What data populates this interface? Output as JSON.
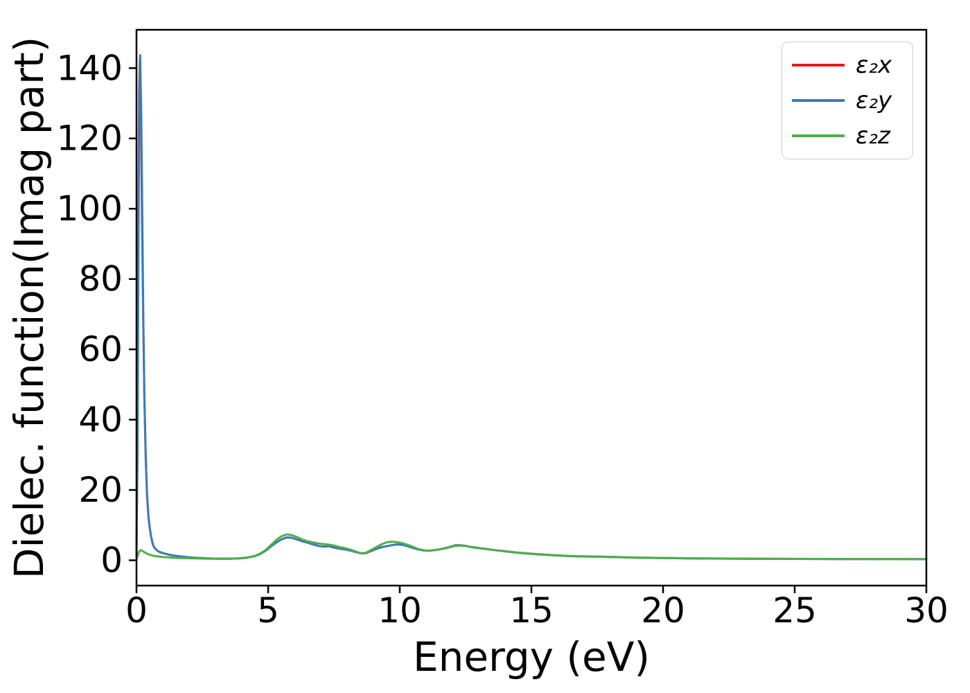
{
  "chart_data": {
    "type": "line",
    "title": "",
    "xlabel": "Energy (eV)",
    "ylabel": "Dielec. function(Imag part)",
    "xlim": [
      0,
      30
    ],
    "ylim": [
      -7.2,
      150.9
    ],
    "xticks": [
      0,
      5,
      10,
      15,
      20,
      25,
      30
    ],
    "yticks": [
      0,
      20,
      40,
      60,
      80,
      100,
      120,
      140
    ],
    "grid": false,
    "legend_position": "upper right",
    "series": [
      {
        "name": "ε₂x",
        "color": "#e41a1c",
        "points": [
          [
            0,
            1.0
          ],
          [
            0.03,
            30
          ],
          [
            0.07,
            95
          ],
          [
            0.1,
            133
          ],
          [
            0.13,
            142.5
          ],
          [
            0.17,
            126
          ],
          [
            0.21,
            96
          ],
          [
            0.26,
            66
          ],
          [
            0.3,
            46
          ],
          [
            0.35,
            29
          ],
          [
            0.4,
            18.5
          ],
          [
            0.45,
            12.7
          ],
          [
            0.5,
            9.3
          ],
          [
            0.55,
            6.9
          ],
          [
            0.6,
            5.1
          ],
          [
            0.65,
            3.95
          ],
          [
            0.7,
            3.38
          ],
          [
            0.8,
            2.68
          ],
          [
            0.9,
            2.28
          ],
          [
            1.0,
            2.05
          ],
          [
            1.2,
            1.65
          ],
          [
            1.4,
            1.35
          ],
          [
            1.6,
            1.15
          ],
          [
            1.8,
            0.98
          ],
          [
            2.0,
            0.85
          ],
          [
            2.2,
            0.72
          ],
          [
            2.5,
            0.6
          ],
          [
            2.8,
            0.5
          ],
          [
            3.0,
            0.46
          ],
          [
            3.3,
            0.44
          ],
          [
            3.6,
            0.46
          ],
          [
            3.9,
            0.55
          ],
          [
            4.2,
            0.75
          ],
          [
            4.5,
            1.2
          ],
          [
            4.7,
            1.8
          ],
          [
            4.9,
            2.7
          ],
          [
            5.1,
            3.9
          ],
          [
            5.3,
            5.0
          ],
          [
            5.5,
            5.9
          ],
          [
            5.7,
            6.5
          ],
          [
            5.9,
            6.4
          ],
          [
            6.1,
            5.9
          ],
          [
            6.3,
            5.4
          ],
          [
            6.5,
            5.0
          ],
          [
            6.7,
            4.5
          ],
          [
            6.9,
            4.1
          ],
          [
            7.1,
            3.9
          ],
          [
            7.3,
            4.0
          ],
          [
            7.5,
            3.6
          ],
          [
            7.7,
            3.3
          ],
          [
            7.9,
            3.1
          ],
          [
            8.1,
            2.8
          ],
          [
            8.3,
            2.4
          ],
          [
            8.5,
            2.0
          ],
          [
            8.7,
            2.0
          ],
          [
            8.9,
            2.6
          ],
          [
            9.1,
            3.2
          ],
          [
            9.3,
            3.7
          ],
          [
            9.5,
            4.0
          ],
          [
            9.7,
            4.3
          ],
          [
            9.9,
            4.5
          ],
          [
            10.1,
            4.4
          ],
          [
            10.3,
            4.0
          ],
          [
            10.5,
            3.5
          ],
          [
            10.7,
            3.1
          ],
          [
            10.9,
            2.8
          ],
          [
            11.1,
            2.7
          ],
          [
            11.3,
            2.9
          ],
          [
            11.5,
            3.1
          ],
          [
            11.7,
            3.4
          ],
          [
            11.9,
            3.8
          ],
          [
            12.1,
            4.25
          ],
          [
            12.3,
            4.3
          ],
          [
            12.5,
            4.1
          ],
          [
            12.7,
            3.8
          ],
          [
            13.0,
            3.5
          ],
          [
            13.3,
            3.2
          ],
          [
            13.6,
            2.9
          ],
          [
            14.0,
            2.55
          ],
          [
            14.4,
            2.2
          ],
          [
            14.8,
            1.95
          ],
          [
            15.2,
            1.72
          ],
          [
            15.6,
            1.52
          ],
          [
            16.0,
            1.35
          ],
          [
            16.5,
            1.18
          ],
          [
            17.0,
            1.08
          ],
          [
            17.5,
            1.02
          ],
          [
            18.0,
            0.94
          ],
          [
            18.5,
            0.84
          ],
          [
            19.0,
            0.75
          ],
          [
            19.5,
            0.68
          ],
          [
            20.0,
            0.63
          ],
          [
            21.0,
            0.55
          ],
          [
            22.0,
            0.49
          ],
          [
            23.0,
            0.45
          ],
          [
            24.0,
            0.41
          ],
          [
            25.0,
            0.39
          ],
          [
            26.0,
            0.37
          ],
          [
            27.0,
            0.35
          ],
          [
            28.0,
            0.34
          ],
          [
            29.0,
            0.33
          ],
          [
            30.0,
            0.32
          ]
        ]
      },
      {
        "name": "ε₂y",
        "color": "#377eb8",
        "points": [
          [
            0,
            1.0
          ],
          [
            0.04,
            30
          ],
          [
            0.08,
            95
          ],
          [
            0.11,
            133
          ],
          [
            0.14,
            143.7
          ],
          [
            0.18,
            128
          ],
          [
            0.22,
            98
          ],
          [
            0.26,
            68
          ],
          [
            0.3,
            47
          ],
          [
            0.35,
            30
          ],
          [
            0.4,
            19
          ],
          [
            0.45,
            13
          ],
          [
            0.5,
            9.5
          ],
          [
            0.55,
            7.0
          ],
          [
            0.6,
            5.2
          ],
          [
            0.65,
            4.0
          ],
          [
            0.7,
            3.4
          ],
          [
            0.8,
            2.7
          ],
          [
            0.9,
            2.3
          ],
          [
            1.0,
            2.05
          ],
          [
            1.2,
            1.65
          ],
          [
            1.4,
            1.35
          ],
          [
            1.6,
            1.15
          ],
          [
            1.8,
            0.98
          ],
          [
            2.0,
            0.85
          ],
          [
            2.2,
            0.72
          ],
          [
            2.5,
            0.6
          ],
          [
            2.8,
            0.5
          ],
          [
            3.0,
            0.46
          ],
          [
            3.3,
            0.44
          ],
          [
            3.6,
            0.46
          ],
          [
            3.9,
            0.55
          ],
          [
            4.2,
            0.75
          ],
          [
            4.5,
            1.2
          ],
          [
            4.7,
            1.8
          ],
          [
            4.9,
            2.7
          ],
          [
            5.1,
            3.9
          ],
          [
            5.3,
            5.0
          ],
          [
            5.5,
            5.9
          ],
          [
            5.7,
            6.5
          ],
          [
            5.9,
            6.4
          ],
          [
            6.1,
            5.9
          ],
          [
            6.3,
            5.4
          ],
          [
            6.5,
            5.0
          ],
          [
            6.7,
            4.5
          ],
          [
            6.9,
            4.1
          ],
          [
            7.1,
            3.9
          ],
          [
            7.3,
            4.0
          ],
          [
            7.5,
            3.6
          ],
          [
            7.7,
            3.3
          ],
          [
            7.9,
            3.1
          ],
          [
            8.1,
            2.8
          ],
          [
            8.3,
            2.4
          ],
          [
            8.5,
            2.0
          ],
          [
            8.7,
            2.0
          ],
          [
            8.9,
            2.6
          ],
          [
            9.1,
            3.2
          ],
          [
            9.3,
            3.7
          ],
          [
            9.5,
            4.0
          ],
          [
            9.7,
            4.3
          ],
          [
            9.9,
            4.5
          ],
          [
            10.1,
            4.4
          ],
          [
            10.3,
            4.0
          ],
          [
            10.5,
            3.5
          ],
          [
            10.7,
            3.1
          ],
          [
            10.9,
            2.8
          ],
          [
            11.1,
            2.7
          ],
          [
            11.3,
            2.9
          ],
          [
            11.5,
            3.1
          ],
          [
            11.7,
            3.4
          ],
          [
            11.9,
            3.8
          ],
          [
            12.1,
            4.25
          ],
          [
            12.3,
            4.3
          ],
          [
            12.5,
            4.1
          ],
          [
            12.7,
            3.8
          ],
          [
            13.0,
            3.5
          ],
          [
            13.3,
            3.2
          ],
          [
            13.6,
            2.9
          ],
          [
            14.0,
            2.55
          ],
          [
            14.4,
            2.2
          ],
          [
            14.8,
            1.95
          ],
          [
            15.2,
            1.72
          ],
          [
            15.6,
            1.52
          ],
          [
            16.0,
            1.35
          ],
          [
            16.5,
            1.18
          ],
          [
            17.0,
            1.08
          ],
          [
            17.5,
            1.02
          ],
          [
            18.0,
            0.94
          ],
          [
            18.5,
            0.84
          ],
          [
            19.0,
            0.75
          ],
          [
            19.5,
            0.68
          ],
          [
            20.0,
            0.63
          ],
          [
            21.0,
            0.55
          ],
          [
            22.0,
            0.49
          ],
          [
            23.0,
            0.45
          ],
          [
            24.0,
            0.41
          ],
          [
            25.0,
            0.39
          ],
          [
            26.0,
            0.37
          ],
          [
            27.0,
            0.35
          ],
          [
            28.0,
            0.34
          ],
          [
            29.0,
            0.33
          ],
          [
            30.0,
            0.32
          ]
        ]
      },
      {
        "name": "ε₂z",
        "color": "#4daf4a",
        "points": [
          [
            0,
            0.2
          ],
          [
            0.05,
            1.4
          ],
          [
            0.1,
            2.5
          ],
          [
            0.15,
            2.9
          ],
          [
            0.2,
            2.75
          ],
          [
            0.3,
            2.3
          ],
          [
            0.4,
            1.9
          ],
          [
            0.5,
            1.55
          ],
          [
            0.6,
            1.35
          ],
          [
            0.7,
            1.2
          ],
          [
            0.8,
            1.1
          ],
          [
            1.0,
            0.95
          ],
          [
            1.2,
            0.82
          ],
          [
            1.4,
            0.72
          ],
          [
            1.6,
            0.65
          ],
          [
            1.8,
            0.6
          ],
          [
            2.0,
            0.56
          ],
          [
            2.2,
            0.52
          ],
          [
            2.5,
            0.48
          ],
          [
            2.8,
            0.45
          ],
          [
            3.0,
            0.44
          ],
          [
            3.3,
            0.44
          ],
          [
            3.6,
            0.47
          ],
          [
            3.9,
            0.56
          ],
          [
            4.2,
            0.78
          ],
          [
            4.5,
            1.25
          ],
          [
            4.7,
            1.9
          ],
          [
            4.9,
            2.9
          ],
          [
            5.1,
            4.3
          ],
          [
            5.3,
            5.7
          ],
          [
            5.5,
            6.8
          ],
          [
            5.7,
            7.35
          ],
          [
            5.9,
            7.15
          ],
          [
            6.1,
            6.6
          ],
          [
            6.3,
            5.9
          ],
          [
            6.5,
            5.4
          ],
          [
            6.7,
            5.1
          ],
          [
            6.9,
            4.8
          ],
          [
            7.1,
            4.6
          ],
          [
            7.3,
            4.45
          ],
          [
            7.5,
            4.2
          ],
          [
            7.7,
            3.8
          ],
          [
            7.9,
            3.5
          ],
          [
            8.1,
            3.1
          ],
          [
            8.3,
            2.6
          ],
          [
            8.5,
            2.0
          ],
          [
            8.7,
            2.1
          ],
          [
            8.9,
            2.9
          ],
          [
            9.1,
            3.7
          ],
          [
            9.3,
            4.5
          ],
          [
            9.5,
            5.1
          ],
          [
            9.7,
            5.3
          ],
          [
            9.9,
            5.15
          ],
          [
            10.1,
            4.85
          ],
          [
            10.3,
            4.4
          ],
          [
            10.5,
            3.8
          ],
          [
            10.7,
            3.2
          ],
          [
            10.9,
            2.85
          ],
          [
            11.1,
            2.7
          ],
          [
            11.3,
            2.85
          ],
          [
            11.5,
            3.05
          ],
          [
            11.7,
            3.35
          ],
          [
            11.9,
            3.7
          ],
          [
            12.1,
            4.1
          ],
          [
            12.3,
            4.2
          ],
          [
            12.5,
            4.05
          ],
          [
            12.7,
            3.75
          ],
          [
            13.0,
            3.45
          ],
          [
            13.3,
            3.15
          ],
          [
            13.6,
            2.9
          ],
          [
            14.0,
            2.6
          ],
          [
            14.4,
            2.25
          ],
          [
            14.8,
            2.0
          ],
          [
            15.2,
            1.78
          ],
          [
            15.6,
            1.58
          ],
          [
            16.0,
            1.4
          ],
          [
            16.5,
            1.24
          ],
          [
            17.0,
            1.13
          ],
          [
            17.5,
            1.07
          ],
          [
            18.0,
            0.98
          ],
          [
            18.5,
            0.88
          ],
          [
            19.0,
            0.79
          ],
          [
            19.5,
            0.72
          ],
          [
            20.0,
            0.66
          ],
          [
            21.0,
            0.58
          ],
          [
            22.0,
            0.52
          ],
          [
            23.0,
            0.47
          ],
          [
            24.0,
            0.43
          ],
          [
            25.0,
            0.41
          ],
          [
            26.0,
            0.39
          ],
          [
            27.0,
            0.37
          ],
          [
            28.0,
            0.36
          ],
          [
            29.0,
            0.35
          ],
          [
            30.0,
            0.34
          ]
        ]
      }
    ]
  },
  "legend": {
    "entries": [
      {
        "label": "ε₂x"
      },
      {
        "label": "ε₂y"
      },
      {
        "label": "ε₂z"
      }
    ]
  }
}
